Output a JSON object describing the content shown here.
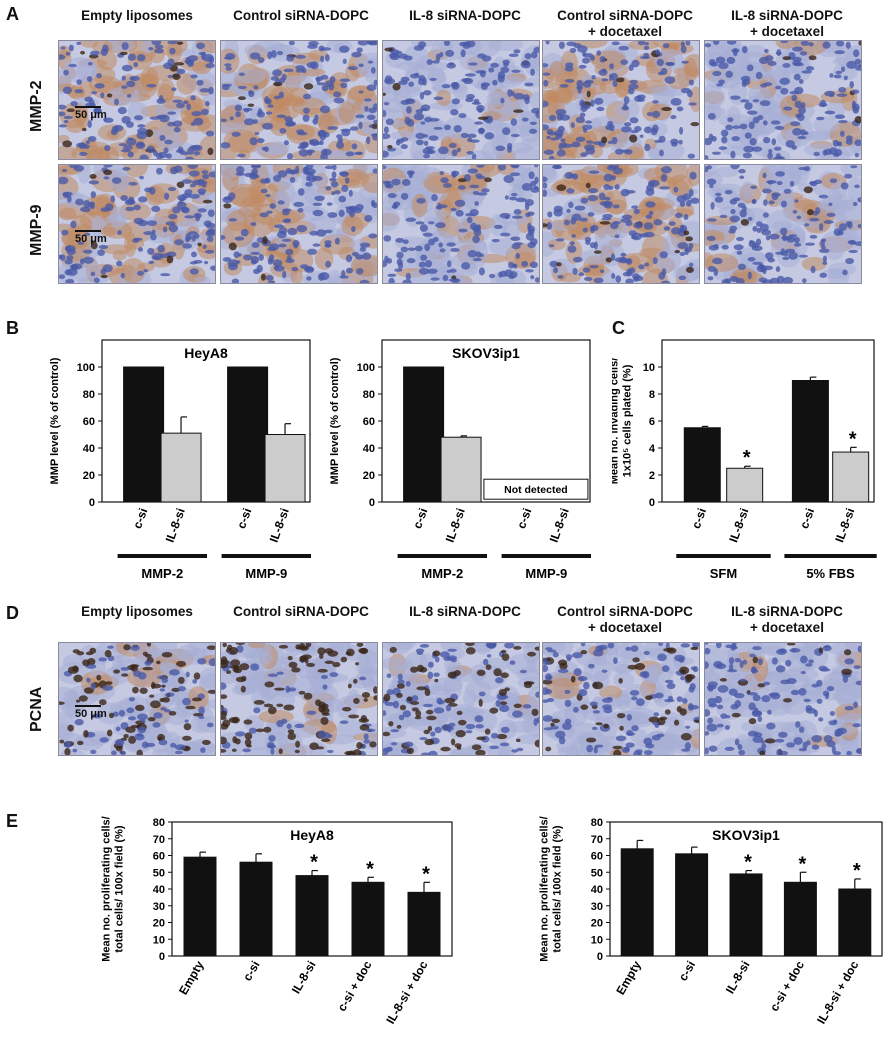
{
  "panels": {
    "A": {
      "letter": "A",
      "columns": [
        "Empty liposomes",
        "Control siRNA-DOPC",
        "IL-8 siRNA-DOPC",
        "Control siRNA-DOPC\n+ docetaxel",
        "IL-8 siRNA-DOPC\n+ docetaxel"
      ],
      "rows": [
        "MMP-2",
        "MMP-9"
      ],
      "scale_bar": "50 μm"
    },
    "B": {
      "letter": "B"
    },
    "C": {
      "letter": "C"
    },
    "D": {
      "letter": "D",
      "columns": [
        "Empty liposomes",
        "Control siRNA-DOPC",
        "IL-8 siRNA-DOPC",
        "Control siRNA-DOPC\n+ docetaxel",
        "IL-8 siRNA-DOPC\n+ docetaxel"
      ],
      "rows": [
        "PCNA"
      ],
      "scale_bar": "50 μm"
    },
    "E": {
      "letter": "E"
    }
  },
  "colors": {
    "bar_dark": "#111111",
    "bar_light": "#cccccc",
    "stain_blue": "#6f7bb3",
    "stain_brown": "#b07a4f"
  },
  "chart_data": [
    {
      "id": "B1",
      "type": "bar",
      "title": "HeyA8",
      "ylabel": "MMP level (% of control)",
      "ylim": [
        0,
        120
      ],
      "yticks": [
        0,
        20,
        40,
        60,
        80,
        100
      ],
      "categories": [
        "c-si",
        "IL-8-si",
        "c-si",
        "IL-8-si"
      ],
      "values": [
        100,
        51,
        100,
        50
      ],
      "errors": [
        0,
        12,
        0,
        8
      ],
      "fills": [
        "dark",
        "light",
        "dark",
        "light"
      ],
      "groups": [
        "MMP-2",
        "MMP-9"
      ]
    },
    {
      "id": "B2",
      "type": "bar",
      "title": "SKOV3ip1",
      "ylabel": "MMP level (% of control)",
      "ylim": [
        0,
        120
      ],
      "yticks": [
        0,
        20,
        40,
        60,
        80,
        100
      ],
      "categories": [
        "c-si",
        "IL-8-si",
        "c-si",
        "IL-8-si"
      ],
      "values": [
        100,
        48,
        null,
        null
      ],
      "errors": [
        0,
        1,
        0,
        0
      ],
      "fills": [
        "dark",
        "light",
        "dark",
        "light"
      ],
      "groups": [
        "MMP-2",
        "MMP-9"
      ],
      "annotation": "Not detected"
    },
    {
      "id": "C",
      "type": "bar",
      "title": "",
      "ylabel": "Mean no. invading cells/\n1x10⁵ cells plated (%)",
      "ylim": [
        0,
        12
      ],
      "yticks": [
        0,
        2,
        4,
        6,
        8,
        10
      ],
      "categories": [
        "c-si",
        "IL-8-si",
        "c-si",
        "IL-8-si"
      ],
      "values": [
        5.5,
        2.5,
        9.0,
        3.7
      ],
      "errors": [
        0.1,
        0.15,
        0.25,
        0.35
      ],
      "fills": [
        "dark",
        "light",
        "dark",
        "light"
      ],
      "significant": [
        false,
        true,
        false,
        true
      ],
      "groups": [
        "SFM",
        "5% FBS"
      ]
    },
    {
      "id": "E1",
      "type": "bar",
      "title": "HeyA8",
      "ylabel": "Mean no. proliferating cells/\ntotal cells/ 100x field (%)",
      "ylim": [
        0,
        80
      ],
      "yticks": [
        0,
        10,
        20,
        30,
        40,
        50,
        60,
        70,
        80
      ],
      "categories": [
        "Empty",
        "c-si",
        "IL-8-si",
        "c-si + doc",
        "IL-8-si + doc"
      ],
      "values": [
        59,
        56,
        48,
        44,
        38
      ],
      "errors": [
        3,
        5,
        3,
        3,
        6
      ],
      "fills": [
        "dark",
        "dark",
        "dark",
        "dark",
        "dark"
      ],
      "significant": [
        false,
        false,
        true,
        true,
        true
      ]
    },
    {
      "id": "E2",
      "type": "bar",
      "title": "SKOV3ip1",
      "ylabel": "Mean no. proliferating cells/\ntotal cells/ 100x field (%)",
      "ylim": [
        0,
        80
      ],
      "yticks": [
        0,
        10,
        20,
        30,
        40,
        50,
        60,
        70,
        80
      ],
      "categories": [
        "Empty",
        "c-si",
        "IL-8-si",
        "c-si + doc",
        "IL-8-si + doc"
      ],
      "values": [
        64,
        61,
        49,
        44,
        40
      ],
      "errors": [
        5,
        4,
        2,
        6,
        6
      ],
      "fills": [
        "dark",
        "dark",
        "dark",
        "dark",
        "dark"
      ],
      "significant": [
        false,
        false,
        true,
        true,
        true
      ]
    }
  ]
}
